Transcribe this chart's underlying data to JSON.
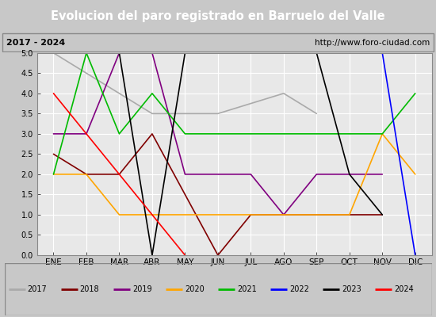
{
  "title": "Evolucion del paro registrado en Barruelo del Valle",
  "subtitle_left": "2017 - 2024",
  "subtitle_right": "http://www.foro-ciudad.com",
  "xlabel_ticks": [
    "ENE",
    "FEB",
    "MAR",
    "ABR",
    "MAY",
    "JUN",
    "JUL",
    "AGO",
    "SEP",
    "OCT",
    "NOV",
    "DIC"
  ],
  "ylim": [
    0.0,
    5.0
  ],
  "yticks": [
    0.0,
    0.5,
    1.0,
    1.5,
    2.0,
    2.5,
    3.0,
    3.5,
    4.0,
    4.5,
    5.0
  ],
  "series": {
    "2017": {
      "color": "#aaaaaa",
      "data": [
        5.0,
        4.5,
        4.0,
        3.5,
        3.5,
        3.5,
        null,
        4.0,
        3.5,
        null,
        null,
        null
      ]
    },
    "2018": {
      "color": "#800000",
      "data": [
        2.5,
        2.0,
        2.0,
        3.0,
        null,
        0.0,
        1.0,
        null,
        null,
        1.0,
        1.0,
        null
      ]
    },
    "2019": {
      "color": "#800080",
      "data": [
        3.0,
        3.0,
        5.0,
        5.0,
        2.0,
        2.0,
        2.0,
        1.0,
        2.0,
        2.0,
        2.0,
        null
      ]
    },
    "2020": {
      "color": "#ffa500",
      "data": [
        2.0,
        2.0,
        1.0,
        1.0,
        1.0,
        1.0,
        1.0,
        1.0,
        1.0,
        1.0,
        3.0,
        2.0
      ]
    },
    "2021": {
      "color": "#00bb00",
      "data": [
        2.0,
        5.0,
        3.0,
        4.0,
        3.0,
        3.0,
        3.0,
        3.0,
        3.0,
        3.0,
        3.0,
        4.0
      ]
    },
    "2022": {
      "color": "#0000ff",
      "data": [
        null,
        null,
        null,
        null,
        null,
        null,
        null,
        null,
        null,
        null,
        5.0,
        0.0
      ]
    },
    "2023": {
      "color": "#000000",
      "data": [
        5.0,
        5.0,
        5.0,
        0.0,
        5.0,
        5.0,
        5.0,
        5.0,
        5.0,
        2.0,
        1.0,
        null
      ]
    },
    "2024": {
      "color": "#ff0000",
      "data": [
        4.0,
        null,
        null,
        null,
        0.0,
        null,
        null,
        null,
        null,
        null,
        null,
        null
      ]
    }
  },
  "title_bg": "#4080c0",
  "title_color": "white",
  "subtitle_bg": "#cccccc",
  "plot_bg": "#e8e8e8",
  "grid_color": "white",
  "legend_bg": "#d8d8d8",
  "border_color": "#888888"
}
